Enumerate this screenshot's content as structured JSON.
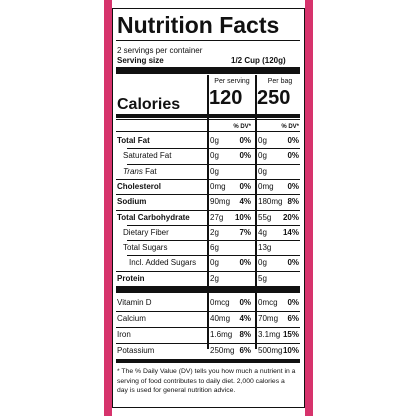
{
  "header": {
    "title": "Nutrition Facts",
    "servings": "2 servings per container",
    "serving_size_label": "Serving size",
    "serving_size": "1/2 Cup (120g)"
  },
  "columns": [
    {
      "heading": "Per serving",
      "calories": "120",
      "dv": "% DV*"
    },
    {
      "heading": "Per bag",
      "calories": "250",
      "dv": "% DV*"
    }
  ],
  "calories_label": "Calories",
  "rows": [
    {
      "name": "Total Fat",
      "serving": "0g",
      "serving_dv": "0%",
      "bag": "0g",
      "bag_dv": "0%"
    },
    {
      "name": "Saturated Fat",
      "serving": "0g",
      "serving_dv": "0%",
      "bag": "0g",
      "bag_dv": "0%"
    },
    {
      "name_italic": "Trans",
      "name": "Fat",
      "serving": "0g",
      "bag": "0g"
    },
    {
      "name": "Cholesterol",
      "serving": "0mg",
      "serving_dv": "0%",
      "bag": "0mg",
      "bag_dv": "0%"
    },
    {
      "name": "Sodium",
      "serving": "90mg",
      "serving_dv": "4%",
      "bag": "180mg",
      "bag_dv": "8%"
    },
    {
      "name": "Total Carbohydrate",
      "serving": "27g",
      "serving_dv": "10%",
      "bag": "55g",
      "bag_dv": "20%"
    },
    {
      "name": "Dietary Fiber",
      "serving": "2g",
      "serving_dv": "7%",
      "bag": "4g",
      "bag_dv": "14%"
    },
    {
      "name": "Total Sugars",
      "serving": "6g",
      "bag": "13g"
    },
    {
      "name": "Incl. Added Sugars",
      "serving": "0g",
      "serving_dv": "0%",
      "bag": "0g",
      "bag_dv": "0%"
    },
    {
      "name": "Protein",
      "serving": "2g",
      "bag": "5g"
    },
    {
      "name": "Vitamin D",
      "serving": "0mcg",
      "serving_dv": "0%",
      "bag": "0mcg",
      "bag_dv": "0%"
    },
    {
      "name": "Calcium",
      "serving": "40mg",
      "serving_dv": "4%",
      "bag": "70mg",
      "bag_dv": "6%"
    },
    {
      "name": "Iron",
      "serving": "1.6mg",
      "serving_dv": "8%",
      "bag": "3.1mg",
      "bag_dv": "15%"
    },
    {
      "name": "Potassium",
      "serving": "250mg",
      "serving_dv": "6%",
      "bag": "500mg",
      "bag_dv": "10%"
    }
  ],
  "footnote": "* The % Daily Value (DV) tells you how much a nutrient in a serving of food contributes to daily diet. 2,000 calories a day is used for general nutrition advice."
}
